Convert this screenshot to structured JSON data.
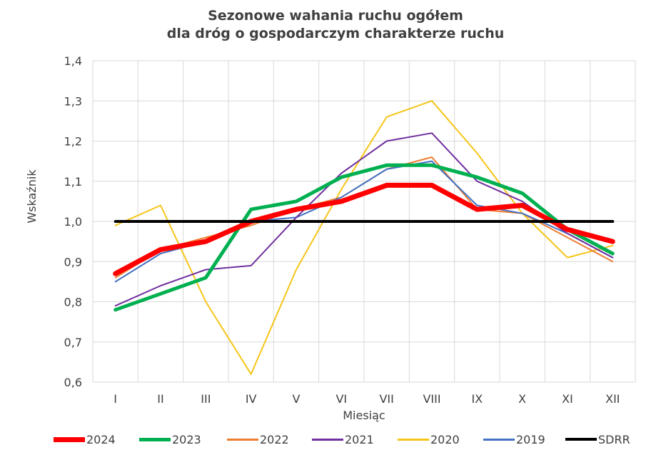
{
  "chart_data": {
    "type": "line",
    "title_line1": "Sezonowe wahania ruchu ogółem",
    "title_line2": "dla dróg o gospodarczym charakterze ruchu",
    "xlabel": "Miesiąc",
    "ylabel": "Wskaźnik",
    "categories": [
      "I",
      "II",
      "III",
      "IV",
      "V",
      "VI",
      "VII",
      "VIII",
      "IX",
      "X",
      "XI",
      "XII"
    ],
    "ylim": [
      0.6,
      1.4
    ],
    "yticks": [
      "0,6",
      "0,7",
      "0,8",
      "0,9",
      "1,0",
      "1,1",
      "1,2",
      "1,3",
      "1,4"
    ],
    "grid": "vertical and horizontal",
    "legend_position": "bottom",
    "series": [
      {
        "name": "2020",
        "color": "#F5C518",
        "width": 2,
        "values": [
          0.99,
          1.04,
          0.8,
          0.62,
          0.88,
          1.08,
          1.26,
          1.3,
          1.17,
          1.02,
          0.91,
          0.94
        ]
      },
      {
        "name": "2022",
        "color": "#ED7D31",
        "width": 2,
        "values": [
          0.86,
          0.93,
          0.96,
          0.99,
          1.03,
          1.06,
          1.13,
          1.16,
          1.03,
          1.02,
          0.96,
          0.9
        ]
      },
      {
        "name": "2019",
        "color": "#4472C4",
        "width": 2,
        "values": [
          0.85,
          0.92,
          0.95,
          1.0,
          1.01,
          1.06,
          1.13,
          1.15,
          1.04,
          1.02,
          0.97,
          0.91
        ]
      },
      {
        "name": "2021",
        "color": "#7030A0",
        "width": 2,
        "values": [
          0.79,
          0.84,
          0.88,
          0.89,
          1.01,
          1.12,
          1.2,
          1.22,
          1.1,
          1.05,
          0.97,
          0.91
        ]
      },
      {
        "name": "2023",
        "color": "#00B050",
        "width": 5,
        "values": [
          0.78,
          0.82,
          0.86,
          1.03,
          1.05,
          1.11,
          1.14,
          1.14,
          1.11,
          1.07,
          0.98,
          0.92
        ]
      },
      {
        "name": "2024",
        "color": "#FF0000",
        "width": 7,
        "values": [
          0.87,
          0.93,
          0.95,
          1.0,
          1.03,
          1.05,
          1.09,
          1.09,
          1.03,
          1.04,
          0.98,
          0.95
        ]
      },
      {
        "name": "SDRR",
        "color": "#000000",
        "width": 4,
        "values": [
          1.0,
          1.0,
          1.0,
          1.0,
          1.0,
          1.0,
          1.0,
          1.0,
          1.0,
          1.0,
          1.0,
          1.0
        ]
      }
    ],
    "legend_order": [
      "2024",
      "2023",
      "2022",
      "2021",
      "2020",
      "2019",
      "SDRR"
    ]
  }
}
